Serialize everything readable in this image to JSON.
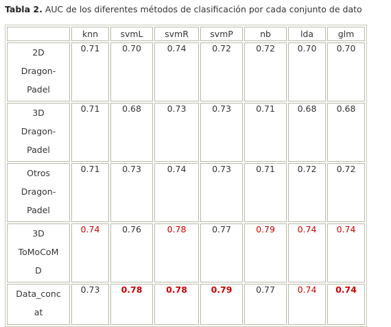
{
  "caption": {
    "label": "Tabla 2.",
    "text": "AUC de los diferentes métodos de clasificación por cada conjunto de dato"
  },
  "table": {
    "headers": [
      "",
      "knn",
      "svmL",
      "svmR",
      "svmP",
      "nb",
      "lda",
      "glm"
    ],
    "rows": [
      {
        "name": [
          "2D",
          "Dragon-",
          "Padel"
        ],
        "values": [
          "0.71",
          "0.70",
          "0.74",
          "0.72",
          "0.72",
          "0.70",
          "0.70"
        ],
        "red": [
          false,
          false,
          false,
          false,
          false,
          false,
          false
        ],
        "bold": [
          false,
          false,
          false,
          false,
          false,
          false,
          false
        ]
      },
      {
        "name": [
          "3D",
          "Dragon-",
          "Padel"
        ],
        "values": [
          "0.71",
          "0.68",
          "0.73",
          "0.73",
          "0.71",
          "0.68",
          "0.68"
        ],
        "red": [
          false,
          false,
          false,
          false,
          false,
          false,
          false
        ],
        "bold": [
          false,
          false,
          false,
          false,
          false,
          false,
          false
        ]
      },
      {
        "name": [
          "Otros",
          "Dragon-",
          "Padel"
        ],
        "values": [
          "0.71",
          "0.73",
          "0.74",
          "0.73",
          "0.71",
          "0.72",
          "0.72"
        ],
        "red": [
          false,
          false,
          false,
          false,
          false,
          false,
          false
        ],
        "bold": [
          false,
          false,
          false,
          false,
          false,
          false,
          false
        ]
      },
      {
        "name": [
          "3D",
          "ToMoCoM",
          "D"
        ],
        "values": [
          "0.74",
          "0.76",
          "0.78",
          "0.77",
          "0.79",
          "0.74",
          "0.74"
        ],
        "red": [
          true,
          false,
          true,
          false,
          true,
          true,
          true
        ],
        "bold": [
          false,
          false,
          false,
          false,
          false,
          false,
          false
        ]
      },
      {
        "name": [
          "Data_conc",
          "at"
        ],
        "values": [
          "0.73",
          "0.78",
          "0.78",
          "0.79",
          "0.77",
          "0.74",
          "0.74"
        ],
        "red": [
          false,
          true,
          true,
          true,
          false,
          true,
          true
        ],
        "bold": [
          false,
          true,
          true,
          true,
          false,
          false,
          true
        ]
      }
    ]
  },
  "colors": {
    "highlight": "#cc0000",
    "text": "#333333",
    "border": "#b8b8a8"
  }
}
